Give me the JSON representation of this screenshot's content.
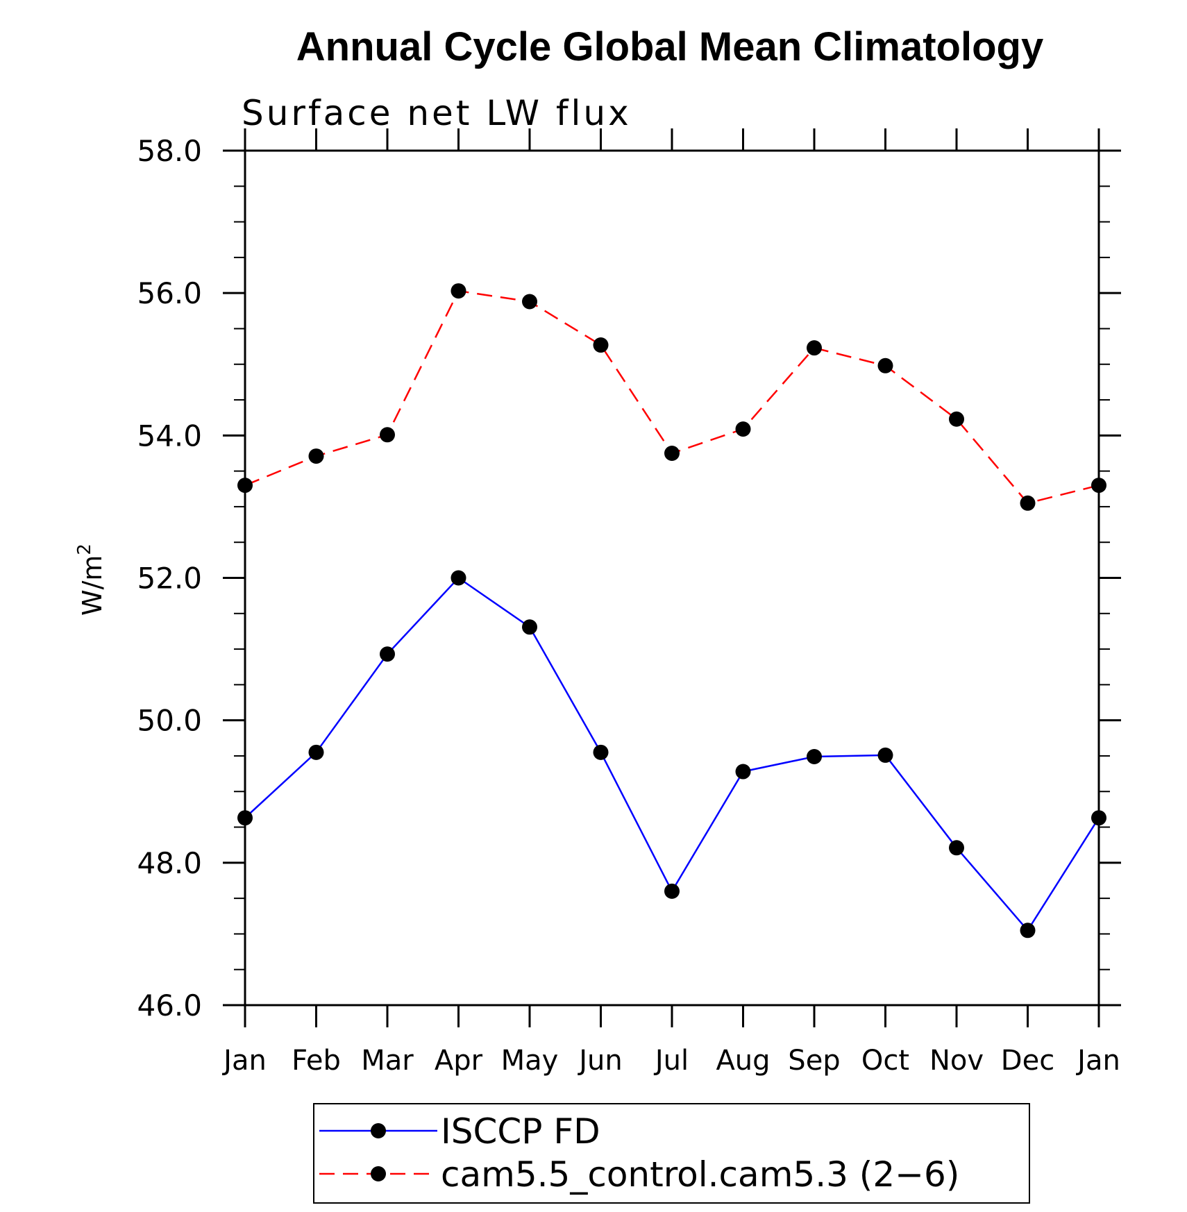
{
  "chart_data": {
    "type": "line",
    "title": "Annual Cycle Global Mean Climatology",
    "subtitle": "Surface net LW flux",
    "xlabel": "",
    "ylabel": "W/m",
    "ylabel_superscript": "2",
    "categories": [
      "Jan",
      "Feb",
      "Mar",
      "Apr",
      "May",
      "Jun",
      "Jul",
      "Aug",
      "Sep",
      "Oct",
      "Nov",
      "Dec",
      "Jan"
    ],
    "ylim": [
      46.0,
      58.0
    ],
    "yticks": [
      46.0,
      48.0,
      50.0,
      52.0,
      54.0,
      56.0,
      58.0
    ],
    "ytick_labels": [
      "46.0",
      "48.0",
      "50.0",
      "52.0",
      "54.0",
      "56.0",
      "58.0"
    ],
    "series": [
      {
        "name": "ISCCP FD",
        "color": "#0000ff",
        "dash": "solid",
        "marker": "filled-circle",
        "values": [
          48.63,
          49.55,
          50.93,
          52.0,
          51.31,
          49.55,
          47.6,
          49.28,
          49.49,
          49.51,
          48.21,
          47.05,
          48.63
        ]
      },
      {
        "name": "cam5.5_control.cam5.3 (2−6)",
        "color": "#ff0000",
        "dash": "dashed",
        "marker": "filled-circle",
        "values": [
          53.3,
          53.71,
          54.01,
          56.03,
          55.88,
          55.27,
          53.75,
          54.09,
          55.23,
          54.98,
          54.23,
          53.05,
          53.3
        ]
      }
    ],
    "legend_position": "bottom"
  }
}
